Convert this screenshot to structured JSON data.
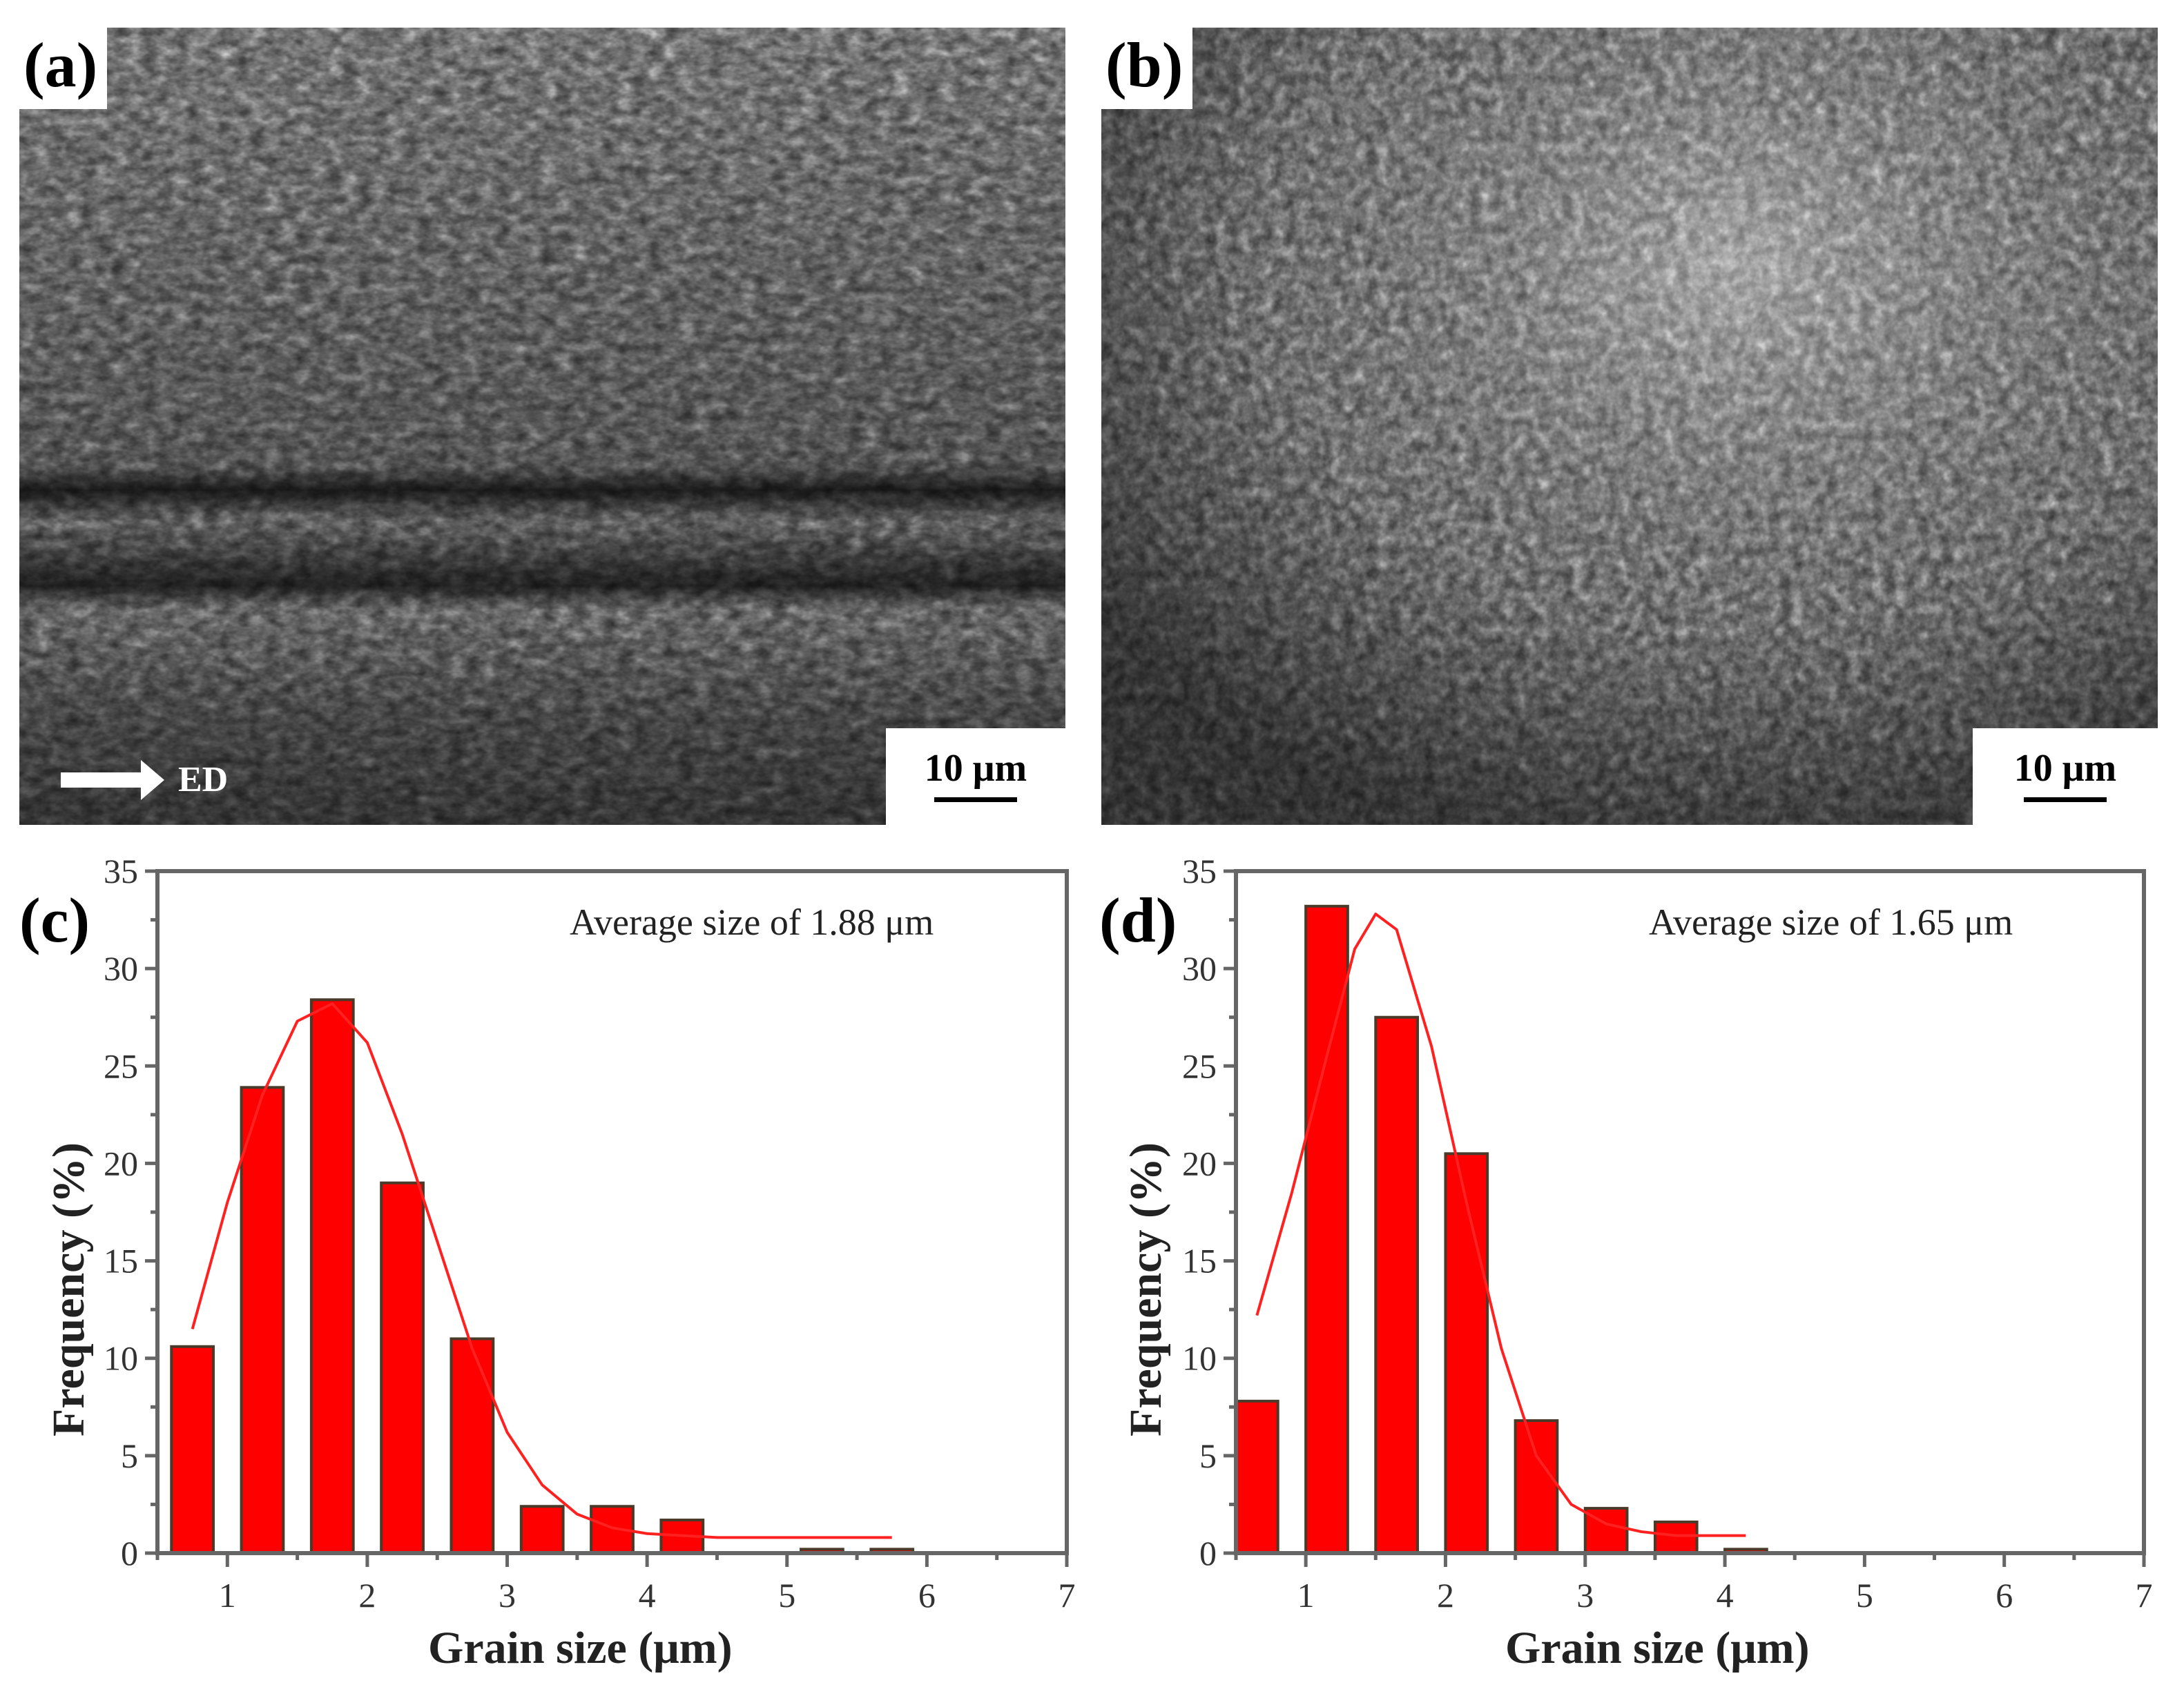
{
  "panels": {
    "a": {
      "label": "(a)",
      "scale_bar": "10 μm",
      "direction_label": "ED",
      "direction_icon": "arrow-right-icon"
    },
    "b": {
      "label": "(b)",
      "scale_bar": "10 μm"
    },
    "c": {
      "label": "(c)",
      "annotation": "Average size of 1.88 μm",
      "xlabel": "Grain size (μm)",
      "ylabel": "Frequency (%)"
    },
    "d": {
      "label": "(d)",
      "annotation": "Average size of 1.65 μm",
      "xlabel": "Grain size (μm)",
      "ylabel": "Frequency (%)"
    }
  },
  "colors": {
    "bar_fill": "#ff0000",
    "bar_edge": "#4a3a2a",
    "fit_curve": "#ff2020",
    "axis": "#666666"
  },
  "chart_data": [
    {
      "panel": "c",
      "type": "bar",
      "title": "",
      "annotation": "Average size of 1.88 μm",
      "xlabel": "Grain size (μm)",
      "ylabel": "Frequency (%)",
      "xlim": [
        0.5,
        7
      ],
      "ylim": [
        0,
        35
      ],
      "xticks": [
        1,
        2,
        3,
        4,
        5,
        6,
        7
      ],
      "yticks": [
        0,
        5,
        10,
        15,
        20,
        25,
        30,
        35
      ],
      "bin_width": 0.5,
      "categories": [
        0.75,
        1.25,
        1.75,
        2.25,
        2.75,
        3.25,
        3.75,
        4.25,
        4.75,
        5.25,
        5.75
      ],
      "values": [
        10.6,
        23.9,
        28.4,
        19.0,
        11.0,
        2.4,
        2.4,
        1.7,
        0.0,
        0.2,
        0.2
      ],
      "fit_curve": {
        "type": "lognormal-fit",
        "x": [
          0.75,
          1.0,
          1.25,
          1.5,
          1.75,
          2.0,
          2.25,
          2.5,
          2.75,
          3.0,
          3.25,
          3.5,
          3.75,
          4.0,
          4.5,
          5.0,
          5.5,
          5.75
        ],
        "y": [
          11.5,
          18.0,
          23.5,
          27.3,
          28.2,
          26.2,
          21.5,
          16.0,
          10.5,
          6.2,
          3.5,
          2.0,
          1.3,
          1.0,
          0.8,
          0.8,
          0.8,
          0.8
        ]
      },
      "grid": false,
      "legend": null
    },
    {
      "panel": "d",
      "type": "bar",
      "title": "",
      "annotation": "Average size of 1.65 μm",
      "xlabel": "Grain size (μm)",
      "ylabel": "Frequency (%)",
      "xlim": [
        0.5,
        7
      ],
      "ylim": [
        0,
        35
      ],
      "xticks": [
        1,
        2,
        3,
        4,
        5,
        6,
        7
      ],
      "yticks": [
        0,
        5,
        10,
        15,
        20,
        25,
        30,
        35
      ],
      "bin_width": 0.5,
      "categories": [
        0.65,
        1.15,
        1.65,
        2.15,
        2.65,
        3.15,
        3.65,
        4.15
      ],
      "values": [
        7.8,
        33.2,
        27.5,
        20.5,
        6.8,
        2.3,
        1.6,
        0.2
      ],
      "fit_curve": {
        "type": "lognormal-fit",
        "x": [
          0.65,
          0.9,
          1.15,
          1.35,
          1.5,
          1.65,
          1.9,
          2.15,
          2.4,
          2.65,
          2.9,
          3.15,
          3.4,
          3.65,
          3.9,
          4.15
        ],
        "y": [
          12.2,
          18.5,
          25.5,
          31.0,
          32.8,
          32.0,
          26.0,
          18.0,
          10.5,
          5.0,
          2.5,
          1.5,
          1.1,
          0.9,
          0.9,
          0.9
        ]
      },
      "grid": false,
      "legend": null
    }
  ]
}
